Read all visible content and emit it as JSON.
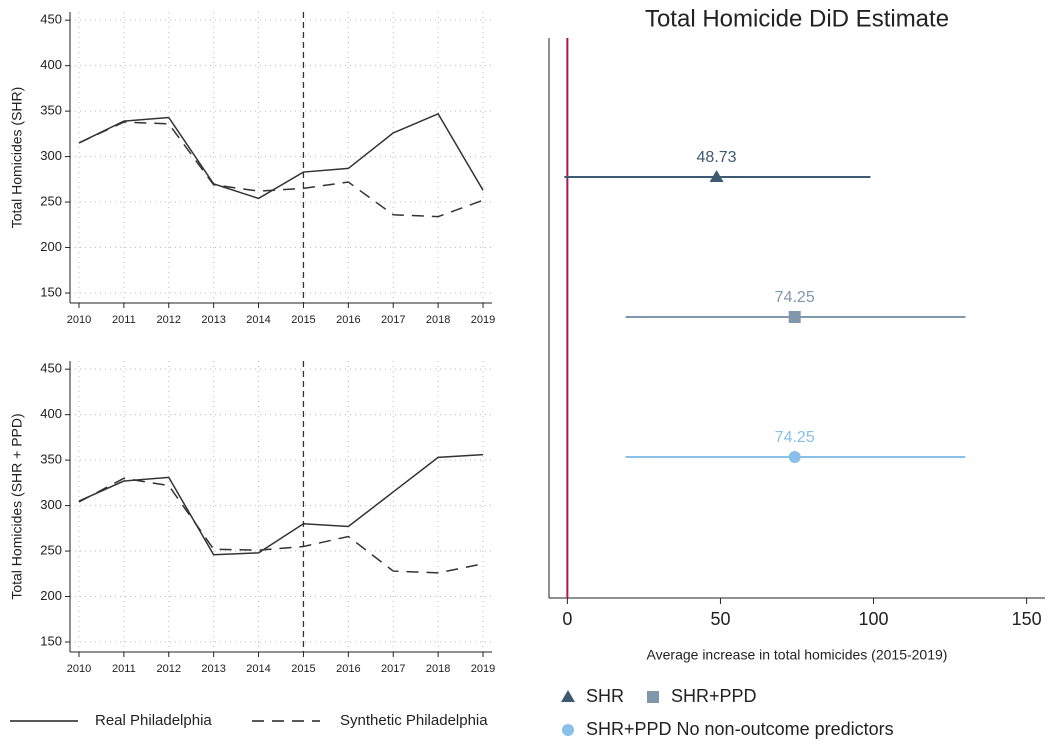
{
  "chart_data": [
    {
      "type": "line",
      "y_label": "Total Homicides (SHR)",
      "x": [
        2010,
        2011,
        2012,
        2013,
        2014,
        2015,
        2016,
        2017,
        2018,
        2019
      ],
      "series": [
        {
          "name": "Real Philadelphia",
          "color": "#333333",
          "dash": "solid",
          "values": [
            315,
            339,
            343,
            270,
            254,
            283,
            287,
            326,
            347,
            263
          ]
        },
        {
          "name": "Synthetic Philadelphia",
          "color": "#333333",
          "dash": "dashed",
          "values": [
            315,
            338,
            336,
            269,
            262,
            265,
            272,
            236,
            234,
            252
          ]
        }
      ],
      "xlim": [
        2009.8,
        2019.2
      ],
      "xticks": [
        2010,
        2011,
        2012,
        2013,
        2014,
        2015,
        2016,
        2017,
        2018,
        2019
      ],
      "ylim": [
        139,
        459
      ],
      "yticks": [
        150,
        200,
        250,
        300,
        350,
        400,
        450
      ],
      "grid": true,
      "event_line": 2015
    },
    {
      "type": "line",
      "y_label": "Total Homicides (SHR + PPD)",
      "x": [
        2010,
        2011,
        2012,
        2013,
        2014,
        2015,
        2016,
        2017,
        2018,
        2019
      ],
      "series": [
        {
          "name": "Real Philadelphia",
          "color": "#333333",
          "dash": "solid",
          "values": [
            305,
            327,
            331,
            246,
            248,
            280,
            277,
            315,
            353,
            356
          ]
        },
        {
          "name": "Synthetic Philadelphia",
          "color": "#333333",
          "dash": "dashed",
          "values": [
            304,
            330,
            322,
            252,
            251,
            255,
            266,
            228,
            226,
            236
          ]
        }
      ],
      "xlim": [
        2009.8,
        2019.2
      ],
      "xticks": [
        2010,
        2011,
        2012,
        2013,
        2014,
        2015,
        2016,
        2017,
        2018,
        2019
      ],
      "ylim": [
        139,
        459
      ],
      "yticks": [
        150,
        200,
        250,
        300,
        350,
        400,
        450
      ],
      "grid": true,
      "event_line": 2015
    },
    {
      "type": "dot-whisker",
      "title": "Total Homicide DiD Estimate",
      "x_label": "Average increase in total homicides (2015-2019)",
      "categories": [
        "SHR",
        "SHR+PPD",
        "SHR+PPD No non-outcome predictors"
      ],
      "values": [
        48.73,
        74.25,
        74.25
      ],
      "ci_low": [
        -1,
        19,
        19
      ],
      "ci_high": [
        99,
        130,
        130
      ],
      "colors": [
        "#3d5a73",
        "#8197ab",
        "#88c0e8"
      ],
      "markers": [
        "triangle",
        "square",
        "circle"
      ],
      "xlim": [
        -6,
        156
      ],
      "xticks": [
        0,
        50,
        100,
        150
      ],
      "reference_line": 0,
      "reference_color": "#b0184a"
    }
  ]
}
